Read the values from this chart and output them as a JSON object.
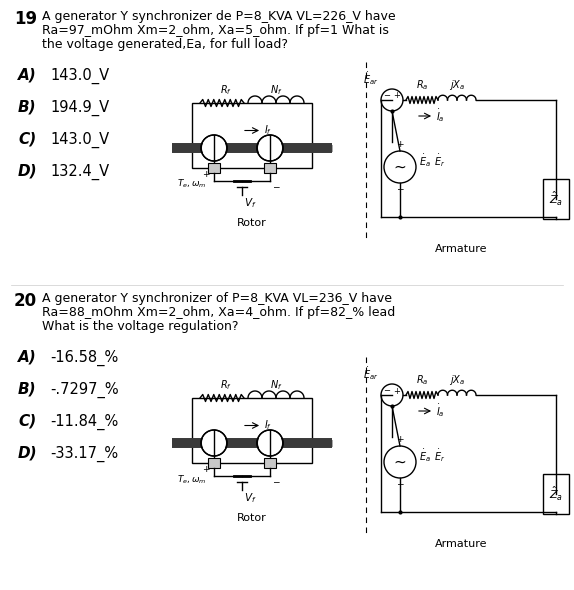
{
  "q19_number": "19",
  "q19_text_line1": "A generator Y synchronizer de P=8_KVA VL=226_V have",
  "q19_text_line2": "Ra=97_mOhm Xm=2_ohm, Xa=5_ohm. If pf=1 What is",
  "q19_text_line3": "the voltage generated,Ea, for full load?",
  "q19_options": [
    [
      "A)",
      "143.0_V"
    ],
    [
      "B)",
      "194.9_V"
    ],
    [
      "C)",
      "143.0_V"
    ],
    [
      "D)",
      "132.4_V"
    ]
  ],
  "q20_number": "20",
  "q20_text_line1": "A generator Y synchronizer of P=8_KVA VL=236_V have",
  "q20_text_line2": "Ra=88_mOhm Xm=2_ohm, Xa=4_ohm. If pf=82_% lead",
  "q20_text_line3": "What is the voltage regulation?",
  "q20_options": [
    [
      "A)",
      "-16.58_%"
    ],
    [
      "B)",
      "-.7297_%"
    ],
    [
      "C)",
      "-11.84_%"
    ],
    [
      "D)",
      "-33.17_%"
    ]
  ],
  "bg_color": "#ffffff",
  "text_color": "#000000"
}
